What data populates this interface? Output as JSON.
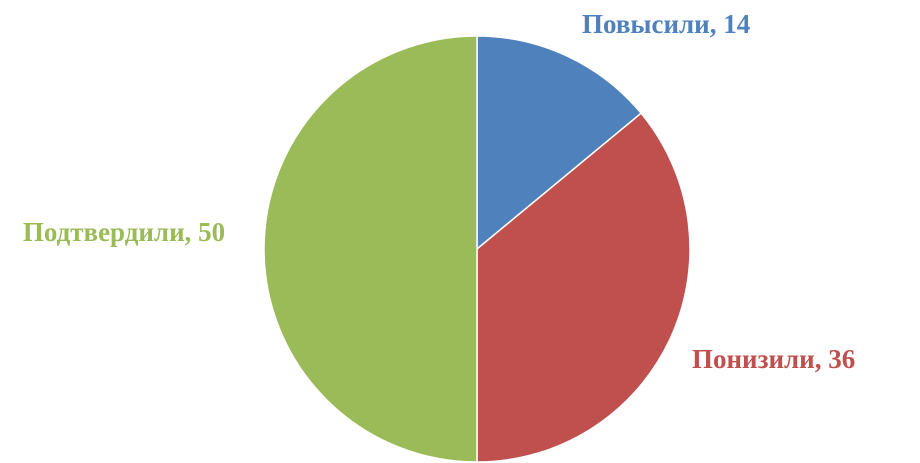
{
  "chart_data": {
    "type": "pie",
    "slices": [
      {
        "label": "Повысили",
        "value": 14,
        "color": "#4F81BD"
      },
      {
        "label": "Понизили",
        "value": 36,
        "color": "#C0504D"
      },
      {
        "label": "Подтвердили",
        "value": 50,
        "color": "#9BBB59"
      }
    ],
    "title": "",
    "legend": "none",
    "label_separator": ", "
  }
}
